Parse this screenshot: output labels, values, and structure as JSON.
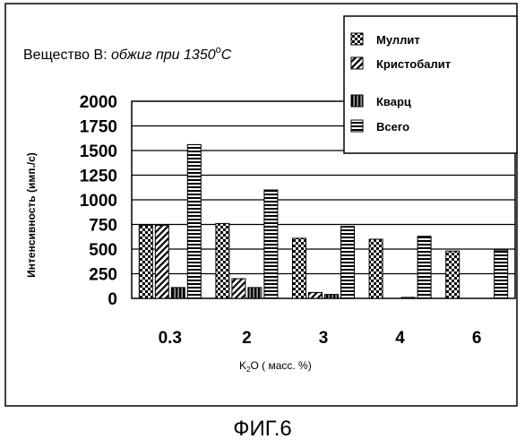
{
  "chart_data": {
    "type": "bar",
    "title_prefix": "Вещество В: ",
    "title_italic": "обжиг при 1350",
    "title_degree": "o",
    "title_unit": "C",
    "ylabel": "Интенсивность (имп./с)",
    "xlabel_main": "K",
    "xlabel_sub": "2",
    "xlabel_rest": "O ( масс. %)",
    "ylim": [
      0,
      2000
    ],
    "yticks": [
      "0",
      "250",
      "500",
      "750",
      "1000",
      "1250",
      "1500",
      "1750",
      "2000"
    ],
    "categories": [
      "0.3",
      "2",
      "3",
      "4",
      "6"
    ],
    "series": [
      {
        "name": "Муллит",
        "pattern": "cross",
        "values": [
          740,
          760,
          610,
          600,
          480
        ]
      },
      {
        "name": "Кристобалит",
        "pattern": "diag",
        "values": [
          740,
          200,
          60,
          0,
          0
        ]
      },
      {
        "name": "Кварц",
        "pattern": "vert",
        "values": [
          110,
          110,
          40,
          10,
          0
        ]
      },
      {
        "name": "Всего",
        "pattern": "horiz",
        "values": [
          1560,
          1100,
          730,
          630,
          490
        ]
      }
    ],
    "legend_position": "top-right",
    "grid": true
  },
  "caption": "ФИГ.6"
}
